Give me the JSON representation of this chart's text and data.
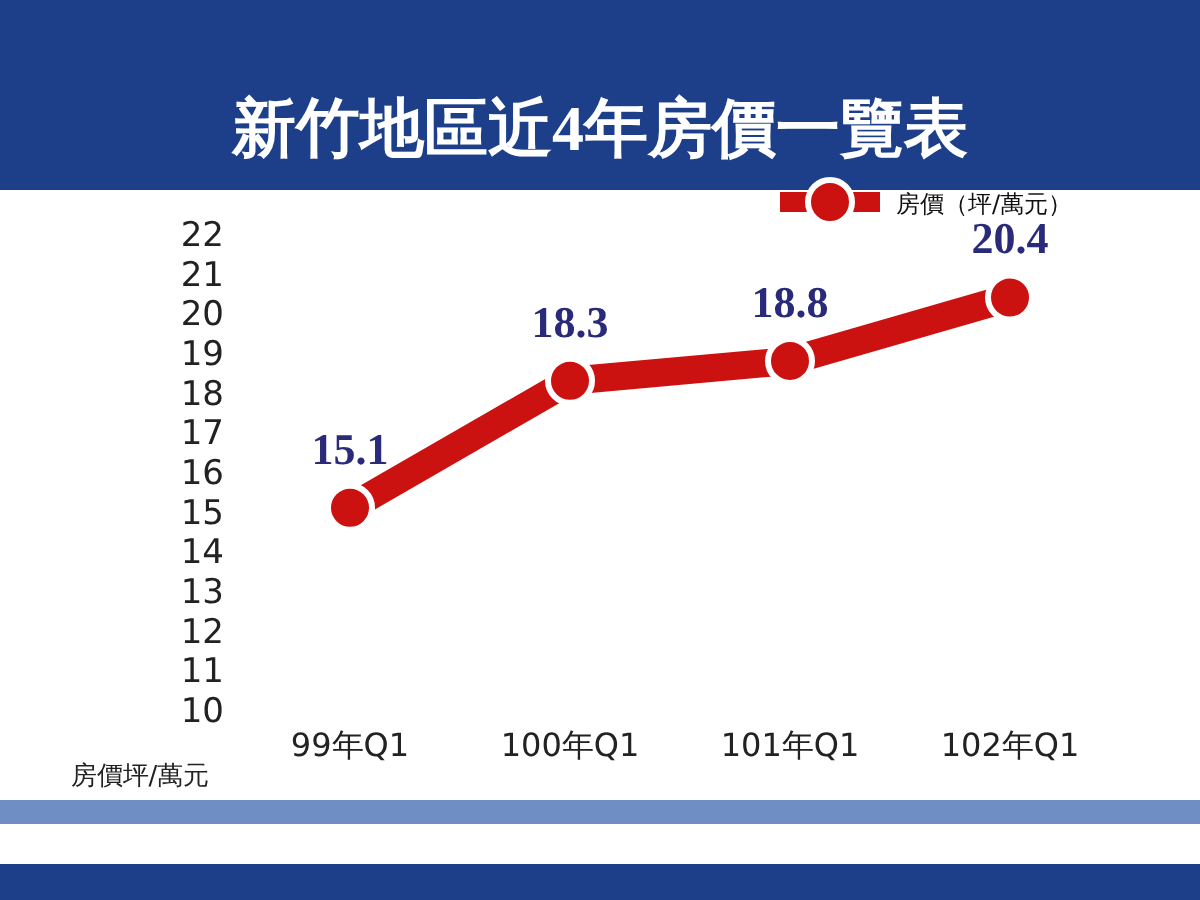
{
  "chart_data": {
    "type": "line",
    "title": "新竹地區近4年房價一覽表",
    "ylabel": "房價坪/萬元",
    "categories": [
      "99年Q1",
      "100年Q1",
      "101年Q1",
      "102年Q1"
    ],
    "series": [
      {
        "name": "房價（坪/萬元）",
        "color": "#cc1111",
        "values": [
          15.1,
          18.3,
          18.8,
          20.4
        ]
      }
    ],
    "ylim": [
      10,
      22
    ],
    "yticks": [
      10,
      11,
      12,
      13,
      14,
      15,
      16,
      17,
      18,
      19,
      20,
      21,
      22
    ],
    "marker": "circle",
    "data_labels": true,
    "legend": "top right"
  }
}
